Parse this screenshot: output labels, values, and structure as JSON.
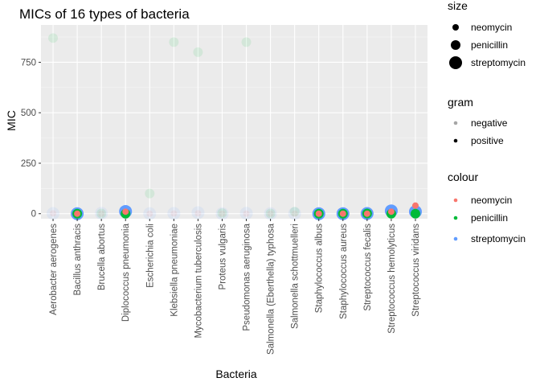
{
  "chart_data": {
    "type": "scatter",
    "title": "MICs of 16 types of bacteria",
    "xlabel": "Bacteria",
    "ylabel": "MIC",
    "ylim": [
      -25,
      935
    ],
    "yticks": [
      0,
      250,
      500,
      750
    ],
    "grid": true,
    "categories": [
      "Aerobacter aerogenes",
      "Bacillus anthracis",
      "Brucella abortus",
      "Diplococcus pneumonia",
      "Escherichia coli",
      "Klebsiella pneumoniae",
      "Mycobacterium tuberculosis",
      "Proteus vulgaris",
      "Pseudomonas aeruginosa",
      "Salmonella (Eberthella) typhosa",
      "Salmonella schottmuelleri",
      "Staphylococcus albus",
      "Staphylococcus aureus",
      "Streptococcus fecalis",
      "Streptococcus hemolyticus",
      "Streptococcus viridans"
    ],
    "gram": [
      "negative",
      "positive",
      "negative",
      "positive",
      "negative",
      "negative",
      "negative",
      "negative",
      "negative",
      "negative",
      "negative",
      "positive",
      "positive",
      "positive",
      "positive",
      "positive"
    ],
    "series": [
      {
        "name": "neomycin",
        "color": "#F8766D",
        "values": [
          1.6,
          0.007,
          0.02,
          10,
          0.1,
          1,
          2,
          0.1,
          0.4,
          0.008,
          0.09,
          0.001,
          0.03,
          0.1,
          10,
          40
        ]
      },
      {
        "name": "penicillin",
        "color": "#00BA38",
        "values": [
          870,
          0.001,
          1,
          0.005,
          100,
          850,
          800,
          3,
          850,
          1,
          10,
          0.007,
          0.03,
          1,
          0.001,
          0.005
        ]
      },
      {
        "name": "streptomycin",
        "color": "#619CFF",
        "values": [
          1,
          0.01,
          2,
          11,
          0.4,
          1.2,
          5,
          0.1,
          2,
          0.4,
          0.8,
          0.1,
          0.03,
          1,
          14,
          10
        ]
      }
    ],
    "legends": {
      "size": {
        "title": "size",
        "items": [
          "neomycin",
          "penicillin",
          "streptomycin"
        ]
      },
      "gram": {
        "title": "gram",
        "items": [
          "negative",
          "positive"
        ]
      },
      "colour": {
        "title": "colour",
        "items": [
          "neomycin",
          "penicillin",
          "streptomycin"
        ]
      }
    }
  }
}
